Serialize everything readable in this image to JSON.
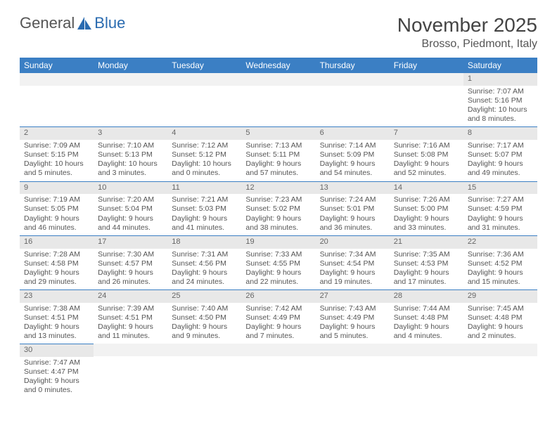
{
  "logo": {
    "part1": "General",
    "part2": "Blue",
    "color_text": "#6a6a6a",
    "color_blue": "#2a6bb0"
  },
  "header": {
    "title": "November 2025",
    "location": "Brosso, Piedmont, Italy"
  },
  "styling": {
    "header_bg": "#3b7fc4",
    "header_text": "#ffffff",
    "daynum_bg": "#e8e8e8",
    "border_color": "#3b7fc4",
    "body_text": "#555555",
    "font_size_body": 10.5,
    "font_size_title": 28
  },
  "weekdays": [
    "Sunday",
    "Monday",
    "Tuesday",
    "Wednesday",
    "Thursday",
    "Friday",
    "Saturday"
  ],
  "weeks": [
    [
      null,
      null,
      null,
      null,
      null,
      null,
      {
        "d": "1",
        "sr": "7:07 AM",
        "ss": "5:16 PM",
        "dl": "Daylight: 10 hours and 8 minutes."
      }
    ],
    [
      {
        "d": "2",
        "sr": "7:09 AM",
        "ss": "5:15 PM",
        "dl": "Daylight: 10 hours and 5 minutes."
      },
      {
        "d": "3",
        "sr": "7:10 AM",
        "ss": "5:13 PM",
        "dl": "Daylight: 10 hours and 3 minutes."
      },
      {
        "d": "4",
        "sr": "7:12 AM",
        "ss": "5:12 PM",
        "dl": "Daylight: 10 hours and 0 minutes."
      },
      {
        "d": "5",
        "sr": "7:13 AM",
        "ss": "5:11 PM",
        "dl": "Daylight: 9 hours and 57 minutes."
      },
      {
        "d": "6",
        "sr": "7:14 AM",
        "ss": "5:09 PM",
        "dl": "Daylight: 9 hours and 54 minutes."
      },
      {
        "d": "7",
        "sr": "7:16 AM",
        "ss": "5:08 PM",
        "dl": "Daylight: 9 hours and 52 minutes."
      },
      {
        "d": "8",
        "sr": "7:17 AM",
        "ss": "5:07 PM",
        "dl": "Daylight: 9 hours and 49 minutes."
      }
    ],
    [
      {
        "d": "9",
        "sr": "7:19 AM",
        "ss": "5:05 PM",
        "dl": "Daylight: 9 hours and 46 minutes."
      },
      {
        "d": "10",
        "sr": "7:20 AM",
        "ss": "5:04 PM",
        "dl": "Daylight: 9 hours and 44 minutes."
      },
      {
        "d": "11",
        "sr": "7:21 AM",
        "ss": "5:03 PM",
        "dl": "Daylight: 9 hours and 41 minutes."
      },
      {
        "d": "12",
        "sr": "7:23 AM",
        "ss": "5:02 PM",
        "dl": "Daylight: 9 hours and 38 minutes."
      },
      {
        "d": "13",
        "sr": "7:24 AM",
        "ss": "5:01 PM",
        "dl": "Daylight: 9 hours and 36 minutes."
      },
      {
        "d": "14",
        "sr": "7:26 AM",
        "ss": "5:00 PM",
        "dl": "Daylight: 9 hours and 33 minutes."
      },
      {
        "d": "15",
        "sr": "7:27 AM",
        "ss": "4:59 PM",
        "dl": "Daylight: 9 hours and 31 minutes."
      }
    ],
    [
      {
        "d": "16",
        "sr": "7:28 AM",
        "ss": "4:58 PM",
        "dl": "Daylight: 9 hours and 29 minutes."
      },
      {
        "d": "17",
        "sr": "7:30 AM",
        "ss": "4:57 PM",
        "dl": "Daylight: 9 hours and 26 minutes."
      },
      {
        "d": "18",
        "sr": "7:31 AM",
        "ss": "4:56 PM",
        "dl": "Daylight: 9 hours and 24 minutes."
      },
      {
        "d": "19",
        "sr": "7:33 AM",
        "ss": "4:55 PM",
        "dl": "Daylight: 9 hours and 22 minutes."
      },
      {
        "d": "20",
        "sr": "7:34 AM",
        "ss": "4:54 PM",
        "dl": "Daylight: 9 hours and 19 minutes."
      },
      {
        "d": "21",
        "sr": "7:35 AM",
        "ss": "4:53 PM",
        "dl": "Daylight: 9 hours and 17 minutes."
      },
      {
        "d": "22",
        "sr": "7:36 AM",
        "ss": "4:52 PM",
        "dl": "Daylight: 9 hours and 15 minutes."
      }
    ],
    [
      {
        "d": "23",
        "sr": "7:38 AM",
        "ss": "4:51 PM",
        "dl": "Daylight: 9 hours and 13 minutes."
      },
      {
        "d": "24",
        "sr": "7:39 AM",
        "ss": "4:51 PM",
        "dl": "Daylight: 9 hours and 11 minutes."
      },
      {
        "d": "25",
        "sr": "7:40 AM",
        "ss": "4:50 PM",
        "dl": "Daylight: 9 hours and 9 minutes."
      },
      {
        "d": "26",
        "sr": "7:42 AM",
        "ss": "4:49 PM",
        "dl": "Daylight: 9 hours and 7 minutes."
      },
      {
        "d": "27",
        "sr": "7:43 AM",
        "ss": "4:49 PM",
        "dl": "Daylight: 9 hours and 5 minutes."
      },
      {
        "d": "28",
        "sr": "7:44 AM",
        "ss": "4:48 PM",
        "dl": "Daylight: 9 hours and 4 minutes."
      },
      {
        "d": "29",
        "sr": "7:45 AM",
        "ss": "4:48 PM",
        "dl": "Daylight: 9 hours and 2 minutes."
      }
    ],
    [
      {
        "d": "30",
        "sr": "7:47 AM",
        "ss": "4:47 PM",
        "dl": "Daylight: 9 hours and 0 minutes."
      },
      null,
      null,
      null,
      null,
      null,
      null
    ]
  ],
  "labels": {
    "sunrise": "Sunrise:",
    "sunset": "Sunset:"
  }
}
